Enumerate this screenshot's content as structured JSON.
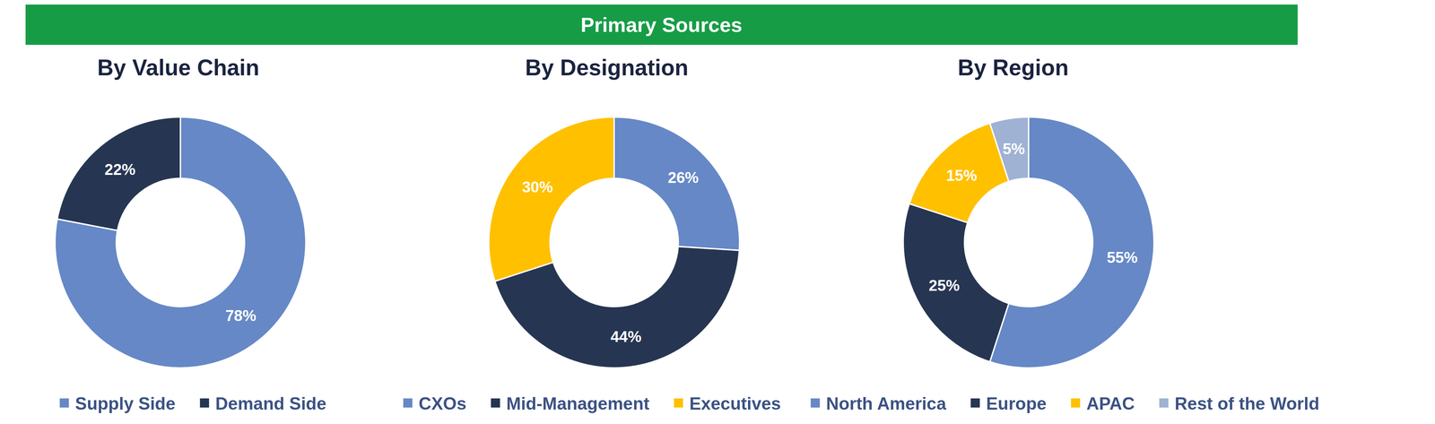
{
  "title": "Primary Sources",
  "chart_data": [
    {
      "type": "donut",
      "title": "By Value Chain",
      "categories": [
        "Supply Side",
        "Demand Side"
      ],
      "values": [
        78,
        22
      ],
      "value_labels": [
        "78%",
        "22%"
      ],
      "colors": [
        "#6688c6",
        "#263652"
      ],
      "data_labels": true,
      "legend": "bottom"
    },
    {
      "type": "donut",
      "title": "By Designation",
      "categories": [
        "CXOs",
        "Mid-Management",
        "Executives"
      ],
      "values": [
        26,
        44,
        30
      ],
      "value_labels": [
        "26%",
        "44%",
        "30%"
      ],
      "colors": [
        "#6688c6",
        "#263652",
        "#ffc000"
      ],
      "data_labels": true,
      "legend": "bottom"
    },
    {
      "type": "donut",
      "title": "By Region",
      "categories": [
        "North America",
        "Europe",
        "APAC",
        "Rest of the World"
      ],
      "values": [
        55,
        25,
        15,
        5
      ],
      "value_labels": [
        "55%",
        "25%",
        "15%",
        "5%"
      ],
      "colors": [
        "#6688c6",
        "#263652",
        "#ffc000",
        "#9fb2d3"
      ],
      "data_labels": true,
      "legend": "bottom"
    }
  ]
}
